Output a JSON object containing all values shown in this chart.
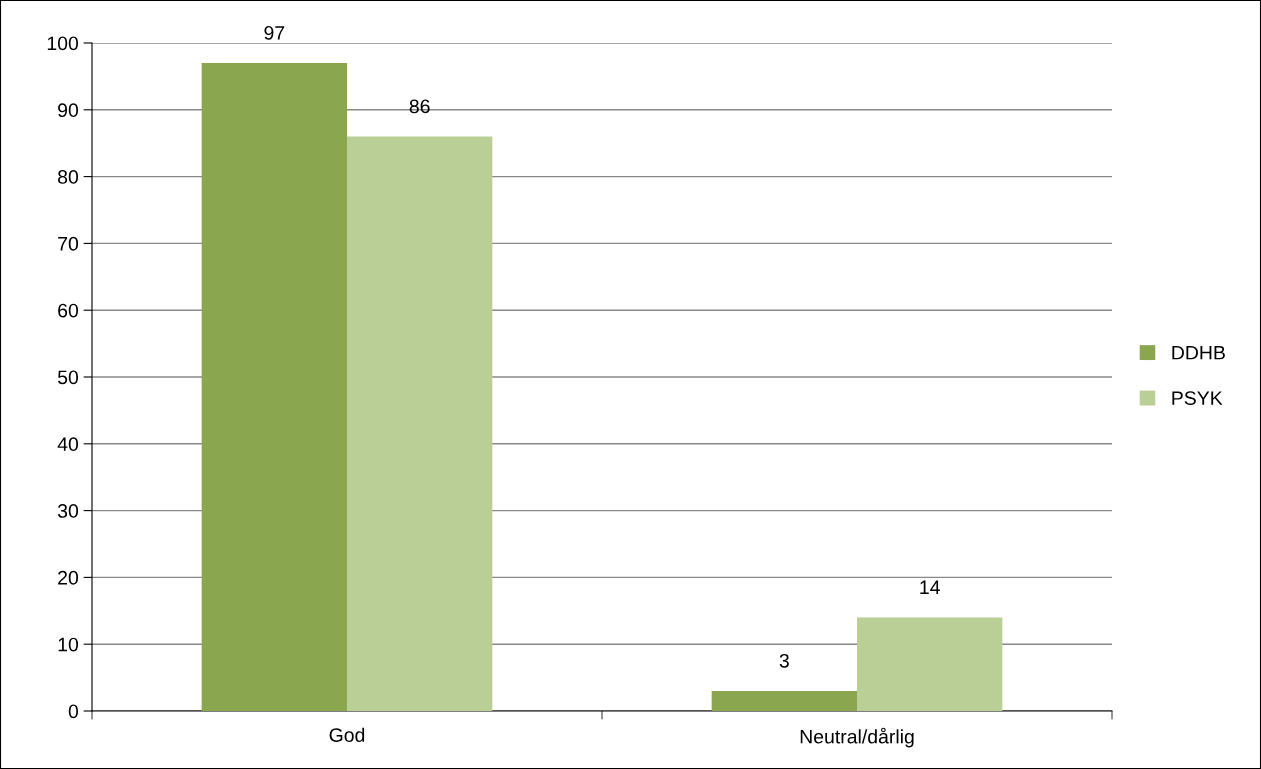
{
  "chart_data": {
    "type": "bar",
    "categories": [
      "God",
      "Neutral/dårlig"
    ],
    "series": [
      {
        "name": "DDHB",
        "color": "#8aa64e",
        "values": [
          97,
          3
        ]
      },
      {
        "name": "PSYK",
        "color": "#bacf96",
        "values": [
          86,
          14
        ]
      }
    ],
    "ylim": [
      0,
      100
    ],
    "yticks": [
      0,
      10,
      20,
      30,
      40,
      50,
      60,
      70,
      80,
      90,
      100
    ],
    "grid": "y",
    "legend": "right",
    "data_labels": true
  }
}
